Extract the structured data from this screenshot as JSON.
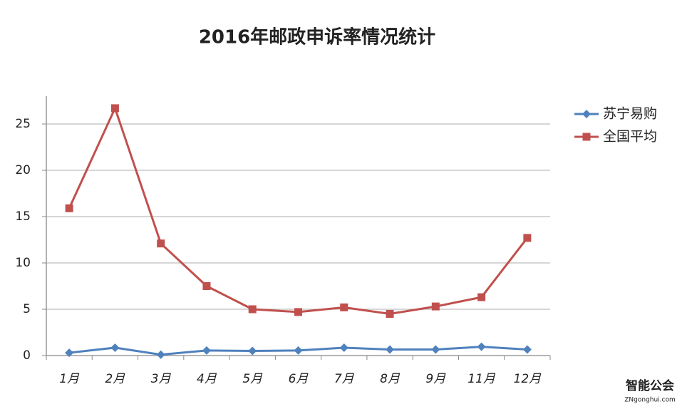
{
  "chart_data": {
    "type": "line",
    "title": "2016年邮政申诉率情况统计",
    "categories": [
      "1月",
      "2月",
      "3月",
      "4月",
      "5月",
      "6月",
      "7月",
      "8月",
      "9月",
      "11月",
      "12月"
    ],
    "series": [
      {
        "name": "苏宁易购",
        "color": "#4f81bd",
        "marker": "diamond",
        "values": [
          0.3,
          0.85,
          0.1,
          0.55,
          0.5,
          0.55,
          0.85,
          0.65,
          0.65,
          0.95,
          0.65
        ]
      },
      {
        "name": "全国平均",
        "color": "#c0504d",
        "marker": "square",
        "values": [
          15.9,
          26.7,
          12.1,
          7.5,
          5.0,
          4.7,
          5.2,
          4.5,
          5.3,
          6.3,
          12.7
        ]
      }
    ],
    "ylim": [
      0,
      28
    ],
    "yticks": [
      0,
      5,
      10,
      15,
      20,
      25
    ],
    "grid": true,
    "legend": "right"
  },
  "watermark": {
    "logo": "智能公会",
    "url": "ZNgonghui.com"
  }
}
